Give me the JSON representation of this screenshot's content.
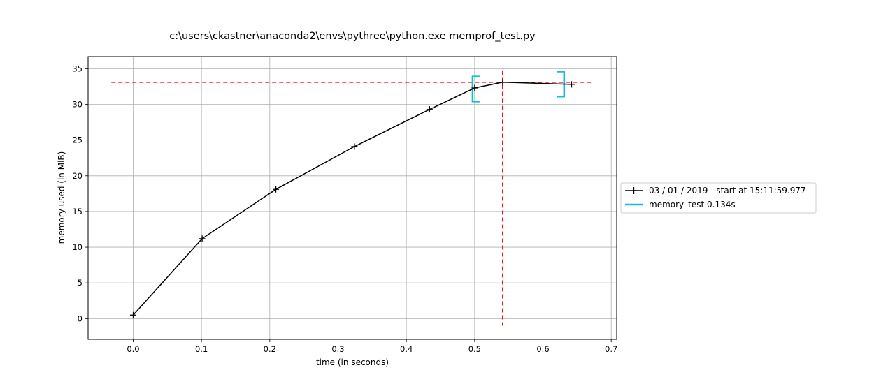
{
  "chart_data": {
    "type": "line",
    "title": "c:\\users\\ckastner\\anaconda2\\envs\\pythree\\python.exe memprof_test.py",
    "xlabel": "time (in seconds)",
    "ylabel": "memory used (in MiB)",
    "xlim": [
      -0.066,
      0.708
    ],
    "ylim": [
      -2.9,
      36.7
    ],
    "xticks": [
      0.0,
      0.1,
      0.2,
      0.3,
      0.4,
      0.5,
      0.6,
      0.7
    ],
    "xtick_labels": [
      "0.0",
      "0.1",
      "0.2",
      "0.3",
      "0.4",
      "0.5",
      "0.6",
      "0.7"
    ],
    "yticks": [
      0,
      5,
      10,
      15,
      20,
      25,
      30,
      35
    ],
    "ytick_labels": [
      "0",
      "5",
      "10",
      "15",
      "20",
      "25",
      "30",
      "35"
    ],
    "grid": true,
    "legend_position": "right, outside plot",
    "series": [
      {
        "name": "03 / 01 / 2019 - start at 15:11:59.977",
        "color": "#000000",
        "marker": "+",
        "x": [
          0.0,
          0.101,
          0.209,
          0.324,
          0.434,
          0.5,
          0.541,
          0.642
        ],
        "y": [
          0.5,
          11.2,
          18.1,
          24.1,
          29.3,
          32.3,
          33.1,
          32.8
        ]
      }
    ],
    "function_brackets": {
      "name": "memory_test 0.134s",
      "color": "#17becf",
      "start": {
        "x": 0.497,
        "y_low": 30.4,
        "y_high": 33.9
      },
      "end": {
        "x": 0.631,
        "y_low": 31.1,
        "y_high": 34.6
      }
    },
    "max_lines": {
      "color": "#ff0000",
      "style": "dashed",
      "horizontal_y": 33.1,
      "horizontal_x_range": [
        -0.032,
        0.674
      ],
      "vertical_x": 0.541,
      "vertical_y_range": [
        -1.0,
        34.7
      ]
    }
  }
}
